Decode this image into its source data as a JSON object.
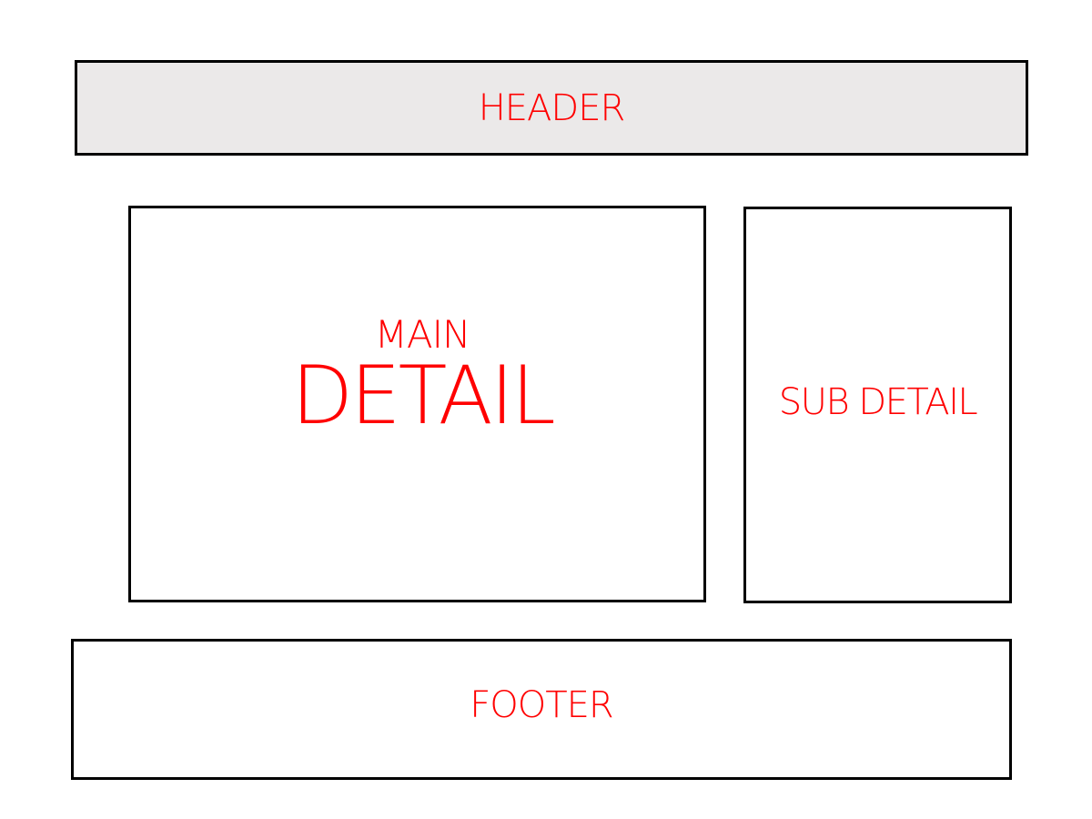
{
  "header": {
    "label": "HEADER"
  },
  "main": {
    "line1": "MAIN",
    "line2": "DETAIL"
  },
  "sub": {
    "label": "SUB DETAIL"
  },
  "footer": {
    "label": "FOOTER"
  },
  "colors": {
    "label": "#ff0000",
    "border": "#000000",
    "header_fill": "#ebe9e9",
    "background": "#ffffff"
  }
}
